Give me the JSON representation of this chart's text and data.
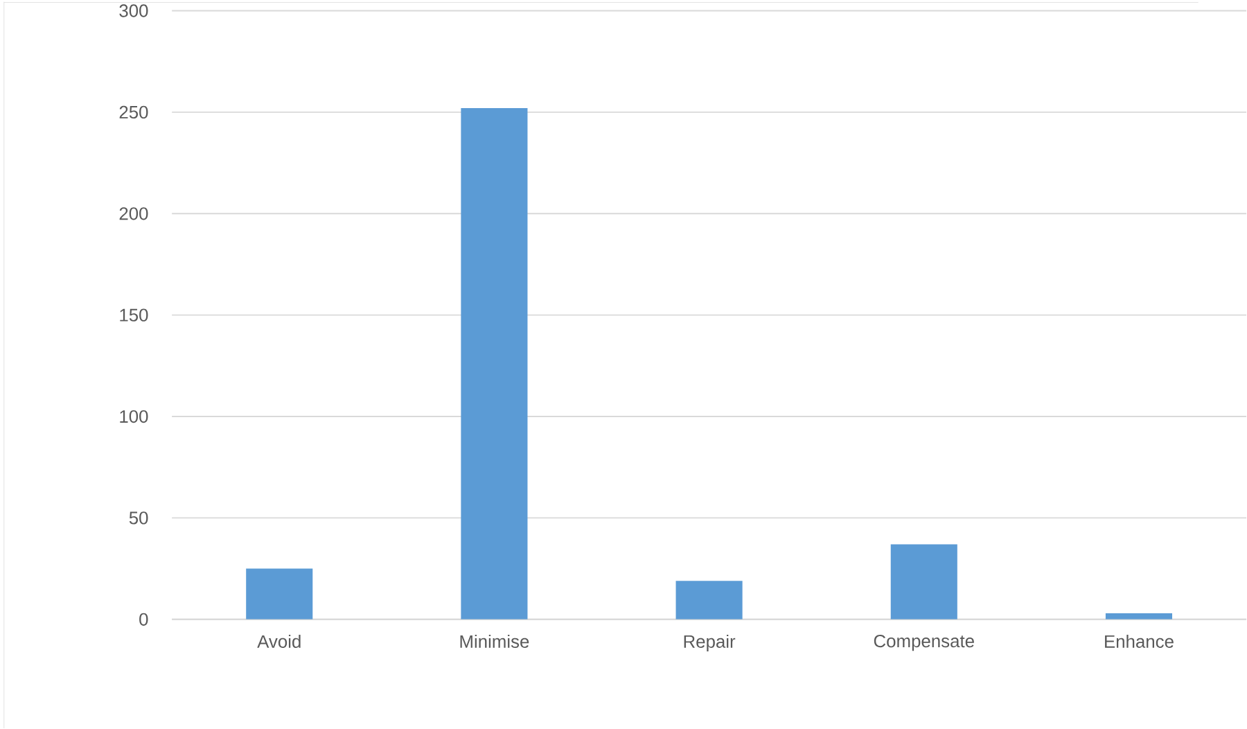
{
  "chart_data": {
    "type": "bar",
    "categories": [
      "Avoid",
      "Minimise",
      "Repair",
      "Compensate",
      "Enhance"
    ],
    "values": [
      25,
      252,
      19,
      37,
      3
    ],
    "color": "#5b9bd5",
    "ylim": [
      0,
      300
    ],
    "yticks": [
      0,
      50,
      100,
      150,
      200,
      250,
      300
    ],
    "grid": "y"
  }
}
